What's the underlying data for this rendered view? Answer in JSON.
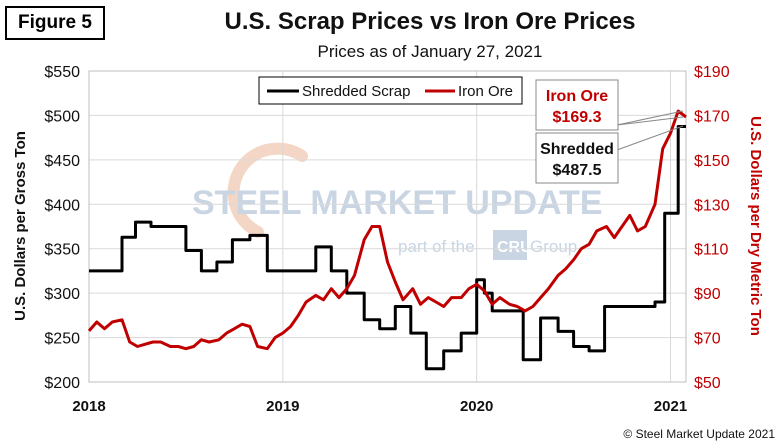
{
  "figure_label": "Figure 5",
  "copyright": "© Steel Market Update 2021",
  "watermark": {
    "main": "STEEL MARKET UPDATE",
    "sub_before": "part of the",
    "sub_logo": "CRU",
    "sub_after": "Group"
  },
  "colors": {
    "scrap": "#000000",
    "ore": "#c00000",
    "grid": "#d9d9d9"
  },
  "chart_data": {
    "type": "line",
    "title": "U.S. Scrap Prices vs Iron Ore Prices",
    "subtitle": "Prices as of January 27, 2021",
    "ylabel": "U.S. Dollars per Gross Ton",
    "y2label": "U.S. Dollars per Dry Metric Ton",
    "x_ticks": [
      "2018",
      "2019",
      "2020",
      "2021"
    ],
    "x_tick_values": [
      2018,
      2019,
      2020,
      2021
    ],
    "xlim": [
      2018,
      2021.08
    ],
    "ylim": [
      200,
      550
    ],
    "y_ticks": [
      "$200",
      "$250",
      "$300",
      "$350",
      "$400",
      "$450",
      "$500",
      "$550"
    ],
    "y_tick_values": [
      200,
      250,
      300,
      350,
      400,
      450,
      500,
      550
    ],
    "y2lim": [
      50,
      190
    ],
    "y2_ticks": [
      "$50",
      "$70",
      "$90",
      "$110",
      "$130",
      "$150",
      "$170",
      "$190"
    ],
    "y2_tick_values": [
      50,
      70,
      90,
      110,
      130,
      150,
      170,
      190
    ],
    "legend": [
      "Shredded Scrap",
      "Iron Ore"
    ],
    "series": [
      {
        "name": "Shredded Scrap",
        "axis": "left",
        "x": [
          2018.0,
          2018.17,
          2018.17,
          2018.24,
          2018.24,
          2018.32,
          2018.32,
          2018.5,
          2018.5,
          2018.58,
          2018.58,
          2018.66,
          2018.66,
          2018.74,
          2018.74,
          2018.83,
          2018.83,
          2018.92,
          2018.92,
          2019.0,
          2019.0,
          2019.17,
          2019.17,
          2019.25,
          2019.25,
          2019.33,
          2019.33,
          2019.42,
          2019.42,
          2019.5,
          2019.5,
          2019.58,
          2019.58,
          2019.66,
          2019.66,
          2019.74,
          2019.74,
          2019.83,
          2019.83,
          2019.92,
          2019.92,
          2020.0,
          2020.0,
          2020.04,
          2020.04,
          2020.08,
          2020.08,
          2020.24,
          2020.24,
          2020.33,
          2020.33,
          2020.42,
          2020.42,
          2020.5,
          2020.5,
          2020.58,
          2020.58,
          2020.66,
          2020.66,
          2020.92,
          2020.92,
          2020.97,
          2020.97,
          2021.04,
          2021.04,
          2021.08
        ],
        "values": [
          325,
          325,
          363,
          363,
          380,
          380,
          375,
          375,
          348,
          348,
          325,
          325,
          335,
          335,
          360,
          360,
          365,
          365,
          325,
          325,
          325,
          325,
          352,
          352,
          325,
          325,
          300,
          300,
          270,
          270,
          260,
          260,
          285,
          285,
          255,
          255,
          215,
          215,
          235,
          235,
          255,
          255,
          315,
          315,
          300,
          300,
          280,
          280,
          225,
          225,
          272,
          272,
          257,
          257,
          240,
          240,
          235,
          235,
          285,
          285,
          290,
          290,
          390,
          390,
          487.5,
          487.5
        ]
      },
      {
        "name": "Iron Ore",
        "axis": "right",
        "x": [
          2018.0,
          2018.04,
          2018.08,
          2018.12,
          2018.17,
          2018.21,
          2018.25,
          2018.29,
          2018.33,
          2018.37,
          2018.42,
          2018.46,
          2018.5,
          2018.54,
          2018.58,
          2018.62,
          2018.67,
          2018.71,
          2018.75,
          2018.79,
          2018.83,
          2018.87,
          2018.92,
          2018.96,
          2019.0,
          2019.04,
          2019.08,
          2019.12,
          2019.17,
          2019.21,
          2019.25,
          2019.29,
          2019.33,
          2019.37,
          2019.42,
          2019.46,
          2019.5,
          2019.54,
          2019.58,
          2019.62,
          2019.67,
          2019.71,
          2019.75,
          2019.79,
          2019.83,
          2019.87,
          2019.92,
          2019.96,
          2020.0,
          2020.04,
          2020.08,
          2020.12,
          2020.17,
          2020.21,
          2020.25,
          2020.29,
          2020.33,
          2020.37,
          2020.42,
          2020.46,
          2020.5,
          2020.54,
          2020.58,
          2020.62,
          2020.67,
          2020.71,
          2020.75,
          2020.79,
          2020.83,
          2020.87,
          2020.92,
          2020.96,
          2021.0,
          2021.04,
          2021.08
        ],
        "values": [
          73,
          77,
          74,
          77,
          78,
          68,
          66,
          67,
          68,
          68,
          66,
          66,
          65,
          66,
          69,
          68,
          69,
          72,
          74,
          76,
          75,
          66,
          65,
          70,
          72,
          75,
          80,
          86,
          89,
          87,
          92,
          88,
          92,
          98,
          114,
          120,
          120,
          104,
          95,
          87,
          92,
          85,
          88,
          86,
          84,
          88,
          88,
          92,
          94,
          91,
          85,
          88,
          85,
          84,
          82,
          84,
          88,
          92,
          98,
          101,
          105,
          110,
          112,
          118,
          120,
          115,
          120,
          125,
          118,
          120,
          130,
          155,
          162,
          172,
          169.3
        ]
      }
    ],
    "annotations": [
      {
        "series": "Iron Ore",
        "label": "Iron Ore",
        "value_label": "$169.3",
        "x": 2021.08,
        "y": 169.3
      },
      {
        "series": "Shredded Scrap",
        "label": "Shredded",
        "value_label": "$487.5",
        "x": 2021.08,
        "y": 487.5
      }
    ]
  }
}
